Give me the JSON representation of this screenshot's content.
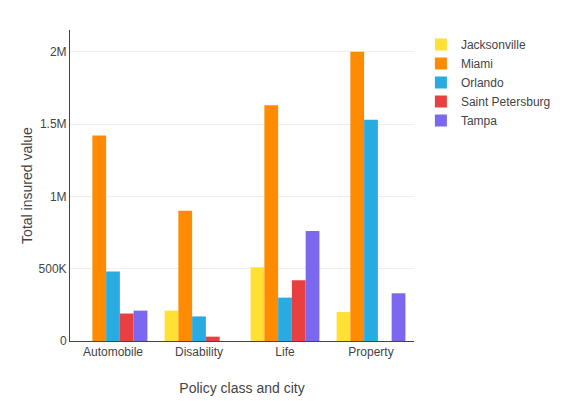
{
  "chart_data": {
    "type": "bar",
    "categories": [
      "Automobile",
      "Disability",
      "Life",
      "Property"
    ],
    "series": [
      {
        "name": "Jacksonville",
        "color": "#FFE033",
        "values": [
          0,
          210000,
          510000,
          200000
        ]
      },
      {
        "name": "Miami",
        "color": "#FF8C00",
        "values": [
          1420000,
          900000,
          1630000,
          2000000
        ]
      },
      {
        "name": "Orlando",
        "color": "#29ABE2",
        "values": [
          480000,
          170000,
          300000,
          1530000
        ]
      },
      {
        "name": "Saint Petersburg",
        "color": "#E84040",
        "values": [
          190000,
          30000,
          420000,
          0
        ]
      },
      {
        "name": "Tampa",
        "color": "#7B68EE",
        "values": [
          210000,
          0,
          760000,
          330000
        ]
      }
    ],
    "xlabel": "Policy class and city",
    "ylabel": "Total insured value",
    "ylim": [
      0,
      2150000
    ],
    "yticks": [
      0,
      {
        "value": 500000,
        "label": "500K"
      },
      {
        "value": 1000000,
        "label": "1M"
      },
      {
        "value": 1500000,
        "label": "1.5M"
      },
      {
        "value": 2000000,
        "label": "2M"
      }
    ],
    "grid": true,
    "legend": "right"
  }
}
